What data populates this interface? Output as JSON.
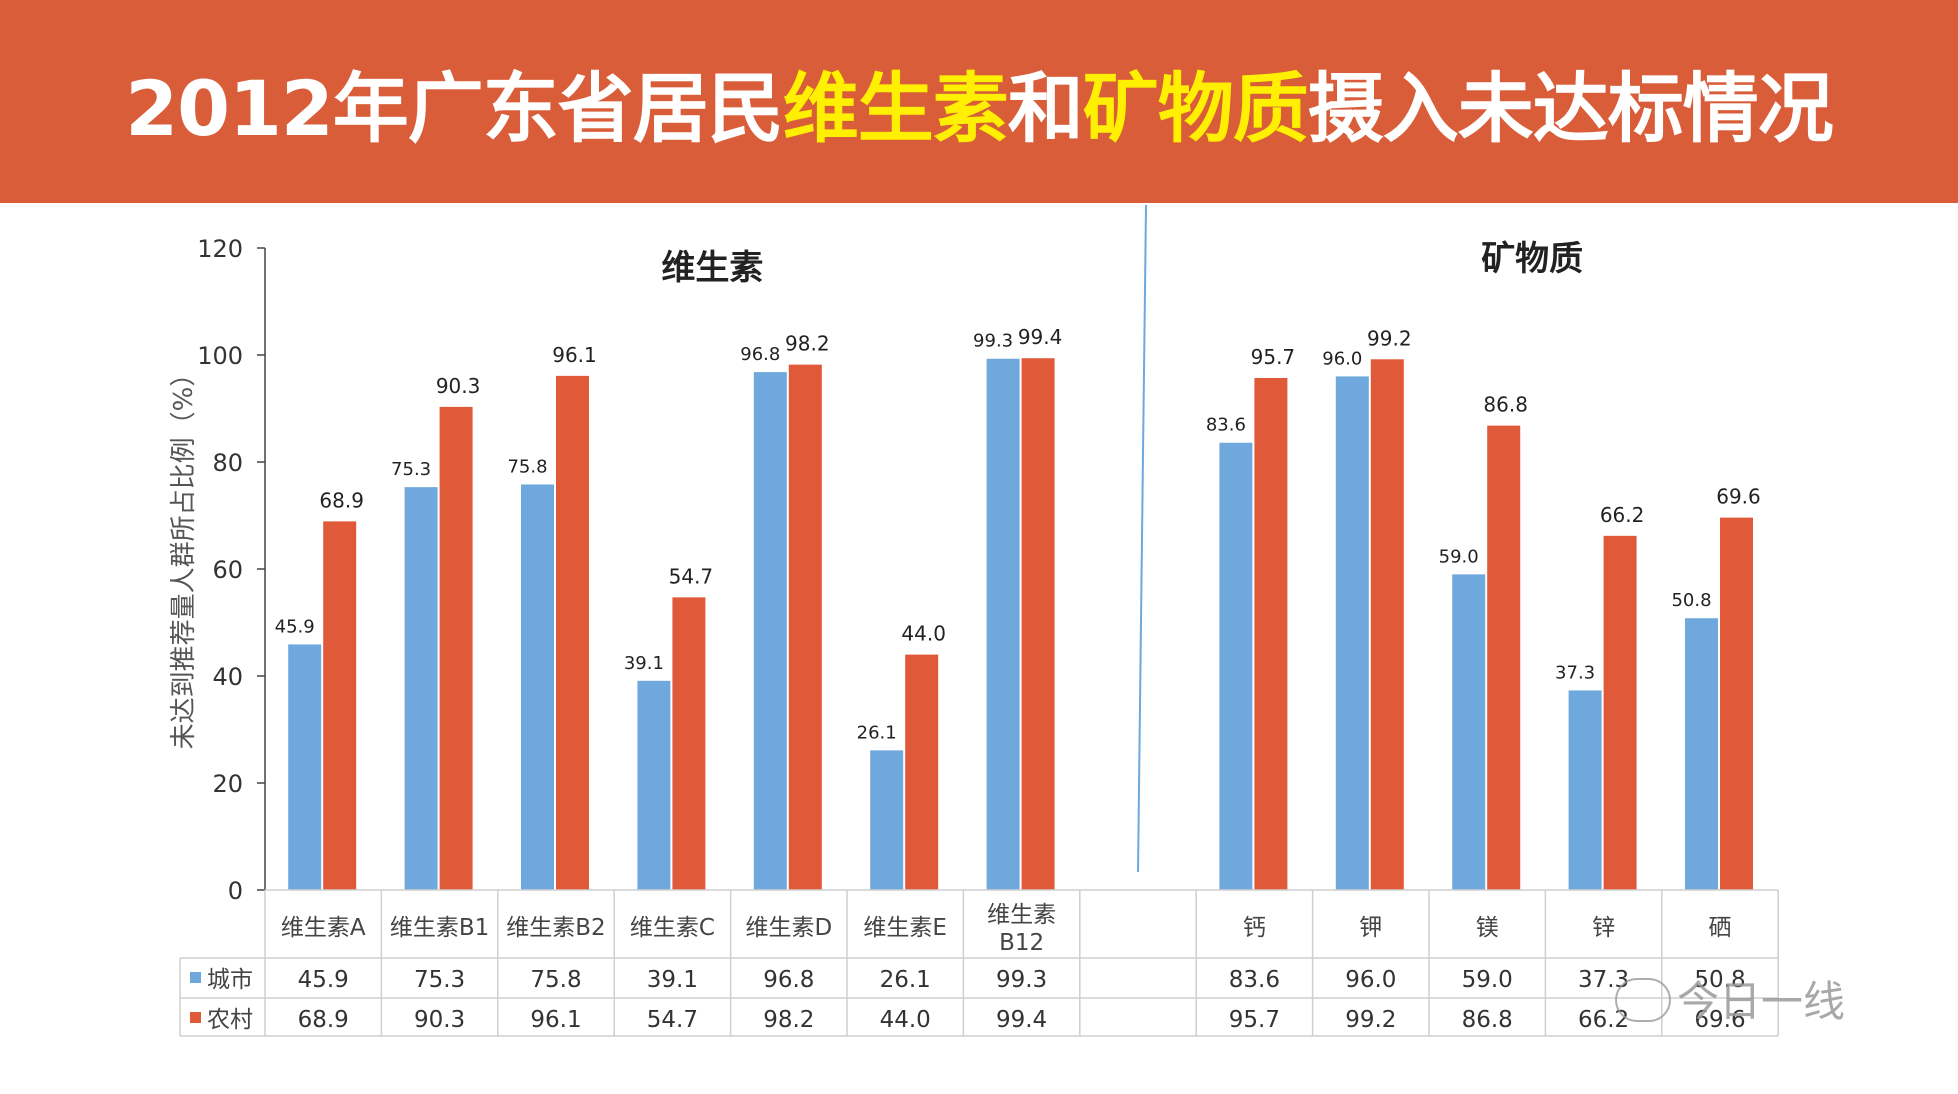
{
  "slide": {
    "title_parts": [
      "2012年广东省居民",
      "维生素",
      "和",
      "矿物质",
      "摄入未达标情况"
    ],
    "watermark": "今日一线"
  },
  "colors": {
    "header": "#d95d39",
    "highlight": "#ffef00",
    "urban": "#6fa8dc",
    "rural": "#e05a3a"
  },
  "chart_data": {
    "type": "bar",
    "ylabel": "未达到推荐量人群所占比例（%）",
    "ylim": [
      0,
      120
    ],
    "yticks": [
      "0",
      "20",
      "40",
      "60",
      "80",
      "100",
      "120"
    ],
    "groups": [
      {
        "name": "维生素",
        "categories": [
          "维生素A",
          "维生素B1",
          "维生素B2",
          "维生素C",
          "维生素D",
          "维生素E",
          "维生素 B12"
        ]
      },
      {
        "name": "矿物质",
        "categories": [
          "钙",
          "钾",
          "镁",
          "锌",
          "硒"
        ]
      }
    ],
    "series": [
      {
        "name": "城市",
        "values": [
          45.9,
          75.3,
          75.8,
          39.1,
          96.8,
          26.1,
          99.3,
          83.6,
          96.0,
          59.0,
          37.3,
          50.8
        ],
        "labels": [
          "45.9",
          "75.3",
          "75.8",
          "39.1",
          "96.8",
          "26.1",
          "99.3",
          "83.6",
          "96.0",
          "59.0",
          "37.3",
          "50.8"
        ]
      },
      {
        "name": "农村",
        "values": [
          68.9,
          90.3,
          96.1,
          54.7,
          98.2,
          44.0,
          99.4,
          95.7,
          99.2,
          86.8,
          66.2,
          69.6
        ],
        "labels": [
          "68.9",
          "90.3",
          "96.1",
          "54.7",
          "98.2",
          "44.0",
          "99.4",
          "95.7",
          "99.2",
          "86.8",
          "66.2",
          "69.6"
        ]
      }
    ]
  }
}
